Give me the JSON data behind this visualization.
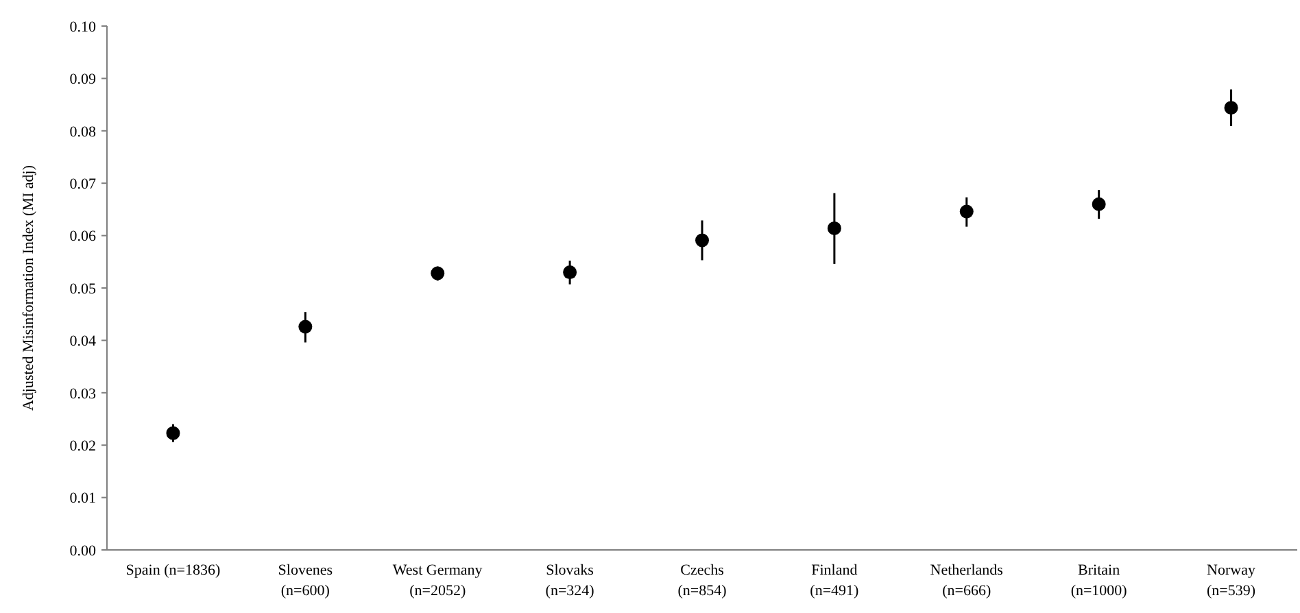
{
  "chart_data": {
    "type": "scatter",
    "ylabel": "Adjusted Misinformation Index (MI adj)",
    "categories": [
      "Spain (n=1836)",
      "Slovenes\n(n=600)",
      "West Germany\n(n=2052)",
      "Slovaks\n(n=324)",
      "Czechs\n(n=854)",
      "Finland\n(n=491)",
      "Netherlands\n(n=666)",
      "Britain\n(n=1000)",
      "Norway\n(n=539)"
    ],
    "values": [
      0.0223,
      0.0426,
      0.0528,
      0.053,
      0.0591,
      0.0614,
      0.0646,
      0.066,
      0.0844
    ],
    "errors": [
      [
        0.0206,
        0.024
      ],
      [
        0.0396,
        0.0454
      ],
      [
        0.0514,
        0.0541
      ],
      [
        0.0507,
        0.0552
      ],
      [
        0.0553,
        0.0629
      ],
      [
        0.0546,
        0.0681
      ],
      [
        0.0617,
        0.0673
      ],
      [
        0.0632,
        0.0687
      ],
      [
        0.0809,
        0.0879
      ]
    ],
    "color": "#000000",
    "marker": "circle",
    "ylim": [
      0,
      0.1
    ],
    "yticks": [
      {
        "value": 0,
        "label": "0.00"
      },
      {
        "value": 0.01,
        "label": "0.01"
      },
      {
        "value": 0.02,
        "label": "0.02"
      },
      {
        "value": 0.03,
        "label": "0.03"
      },
      {
        "value": 0.04,
        "label": "0.04"
      },
      {
        "value": 0.05,
        "label": "0.05"
      },
      {
        "value": 0.06,
        "label": "0.06"
      },
      {
        "value": 0.07,
        "label": "0.07"
      },
      {
        "value": 0.08,
        "label": "0.08"
      },
      {
        "value": 0.09,
        "label": "0.09"
      },
      {
        "value": 0.1,
        "label": "0.10"
      }
    ]
  }
}
